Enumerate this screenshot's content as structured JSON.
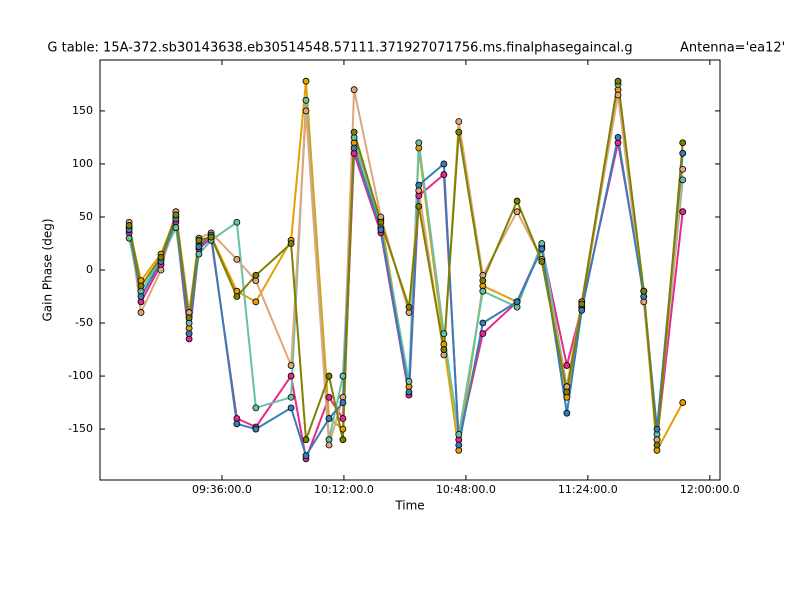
{
  "chart_data": {
    "type": "line",
    "title": "G table: 15A-372.sb30143638.eb30514548.57111.371927071756.ms.finalphasegaincal.g",
    "subtitle": "Antenna='ea12'",
    "x_label": "Time",
    "y_label": "Gain Phase (deg)",
    "x": [
      548.6,
      552.1,
      558.0,
      562.4,
      566.3,
      569.2,
      572.8,
      580.4,
      586.0,
      596.4,
      600.8,
      607.6,
      611.7,
      615.0,
      622.9,
      631.2,
      634.1,
      641.5,
      645.9,
      653.0,
      663.1,
      670.4,
      677.8,
      682.2,
      692.9,
      700.5,
      704.4,
      712.0
    ],
    "series": [
      {
        "color": "#e69f00",
        "values": [
          40,
          -10,
          15,
          50,
          -55,
          25,
          32,
          -20,
          -30,
          28,
          178,
          -140,
          -150,
          120,
          48,
          -110,
          115,
          -70,
          -170,
          -15,
          -30,
          20,
          -120,
          -35,
          170,
          -25,
          -170,
          -125
        ]
      },
      {
        "color": "#e7298a",
        "values": [
          35,
          -30,
          5,
          45,
          -65,
          20,
          30,
          -140,
          -148,
          -100,
          -178,
          -120,
          -140,
          110,
          35,
          -118,
          70,
          90,
          -160,
          -60,
          -30,
          22,
          -90,
          -35,
          120,
          -20,
          -160,
          55
        ]
      },
      {
        "color": "#66c2a5",
        "values": [
          30,
          -20,
          10,
          40,
          -50,
          15,
          28,
          45,
          -130,
          -120,
          160,
          -160,
          -100,
          125,
          40,
          -105,
          120,
          -60,
          -155,
          -20,
          -35,
          25,
          -110,
          -30,
          175,
          -20,
          -155,
          85
        ]
      },
      {
        "color": "#dfa67b",
        "values": [
          45,
          -40,
          0,
          55,
          -40,
          30,
          35,
          10,
          -10,
          -90,
          150,
          -165,
          -120,
          170,
          50,
          -40,
          75,
          -80,
          140,
          -5,
          55,
          10,
          -110,
          -30,
          165,
          -30,
          -160,
          95
        ]
      },
      {
        "color": "#377eb8",
        "values": [
          38,
          -25,
          8,
          48,
          -60,
          22,
          33,
          -145,
          -150,
          -130,
          -175,
          -140,
          -125,
          115,
          38,
          -115,
          80,
          100,
          -165,
          -50,
          -30,
          20,
          -135,
          -38,
          125,
          -25,
          -150,
          110
        ]
      },
      {
        "color": "#808000",
        "values": [
          42,
          -15,
          12,
          52,
          -45,
          28,
          31,
          -25,
          -5,
          25,
          -160,
          -100,
          -160,
          130,
          45,
          -35,
          60,
          -75,
          130,
          -10,
          65,
          8,
          -115,
          -32,
          178,
          -20,
          -165,
          120
        ]
      }
    ],
    "xlim": [
      540,
      723
    ],
    "ylim": [
      -198,
      198
    ],
    "xticks": [
      {
        "value": 576,
        "label": "09:36:00.0"
      },
      {
        "value": 612,
        "label": "10:12:00.0"
      },
      {
        "value": 648,
        "label": "10:48:00.0"
      },
      {
        "value": 684,
        "label": "11:24:00.0"
      },
      {
        "value": 720,
        "label": "12:00:00.0"
      }
    ],
    "yticks": [
      -150,
      -100,
      -50,
      0,
      50,
      100,
      150
    ]
  }
}
